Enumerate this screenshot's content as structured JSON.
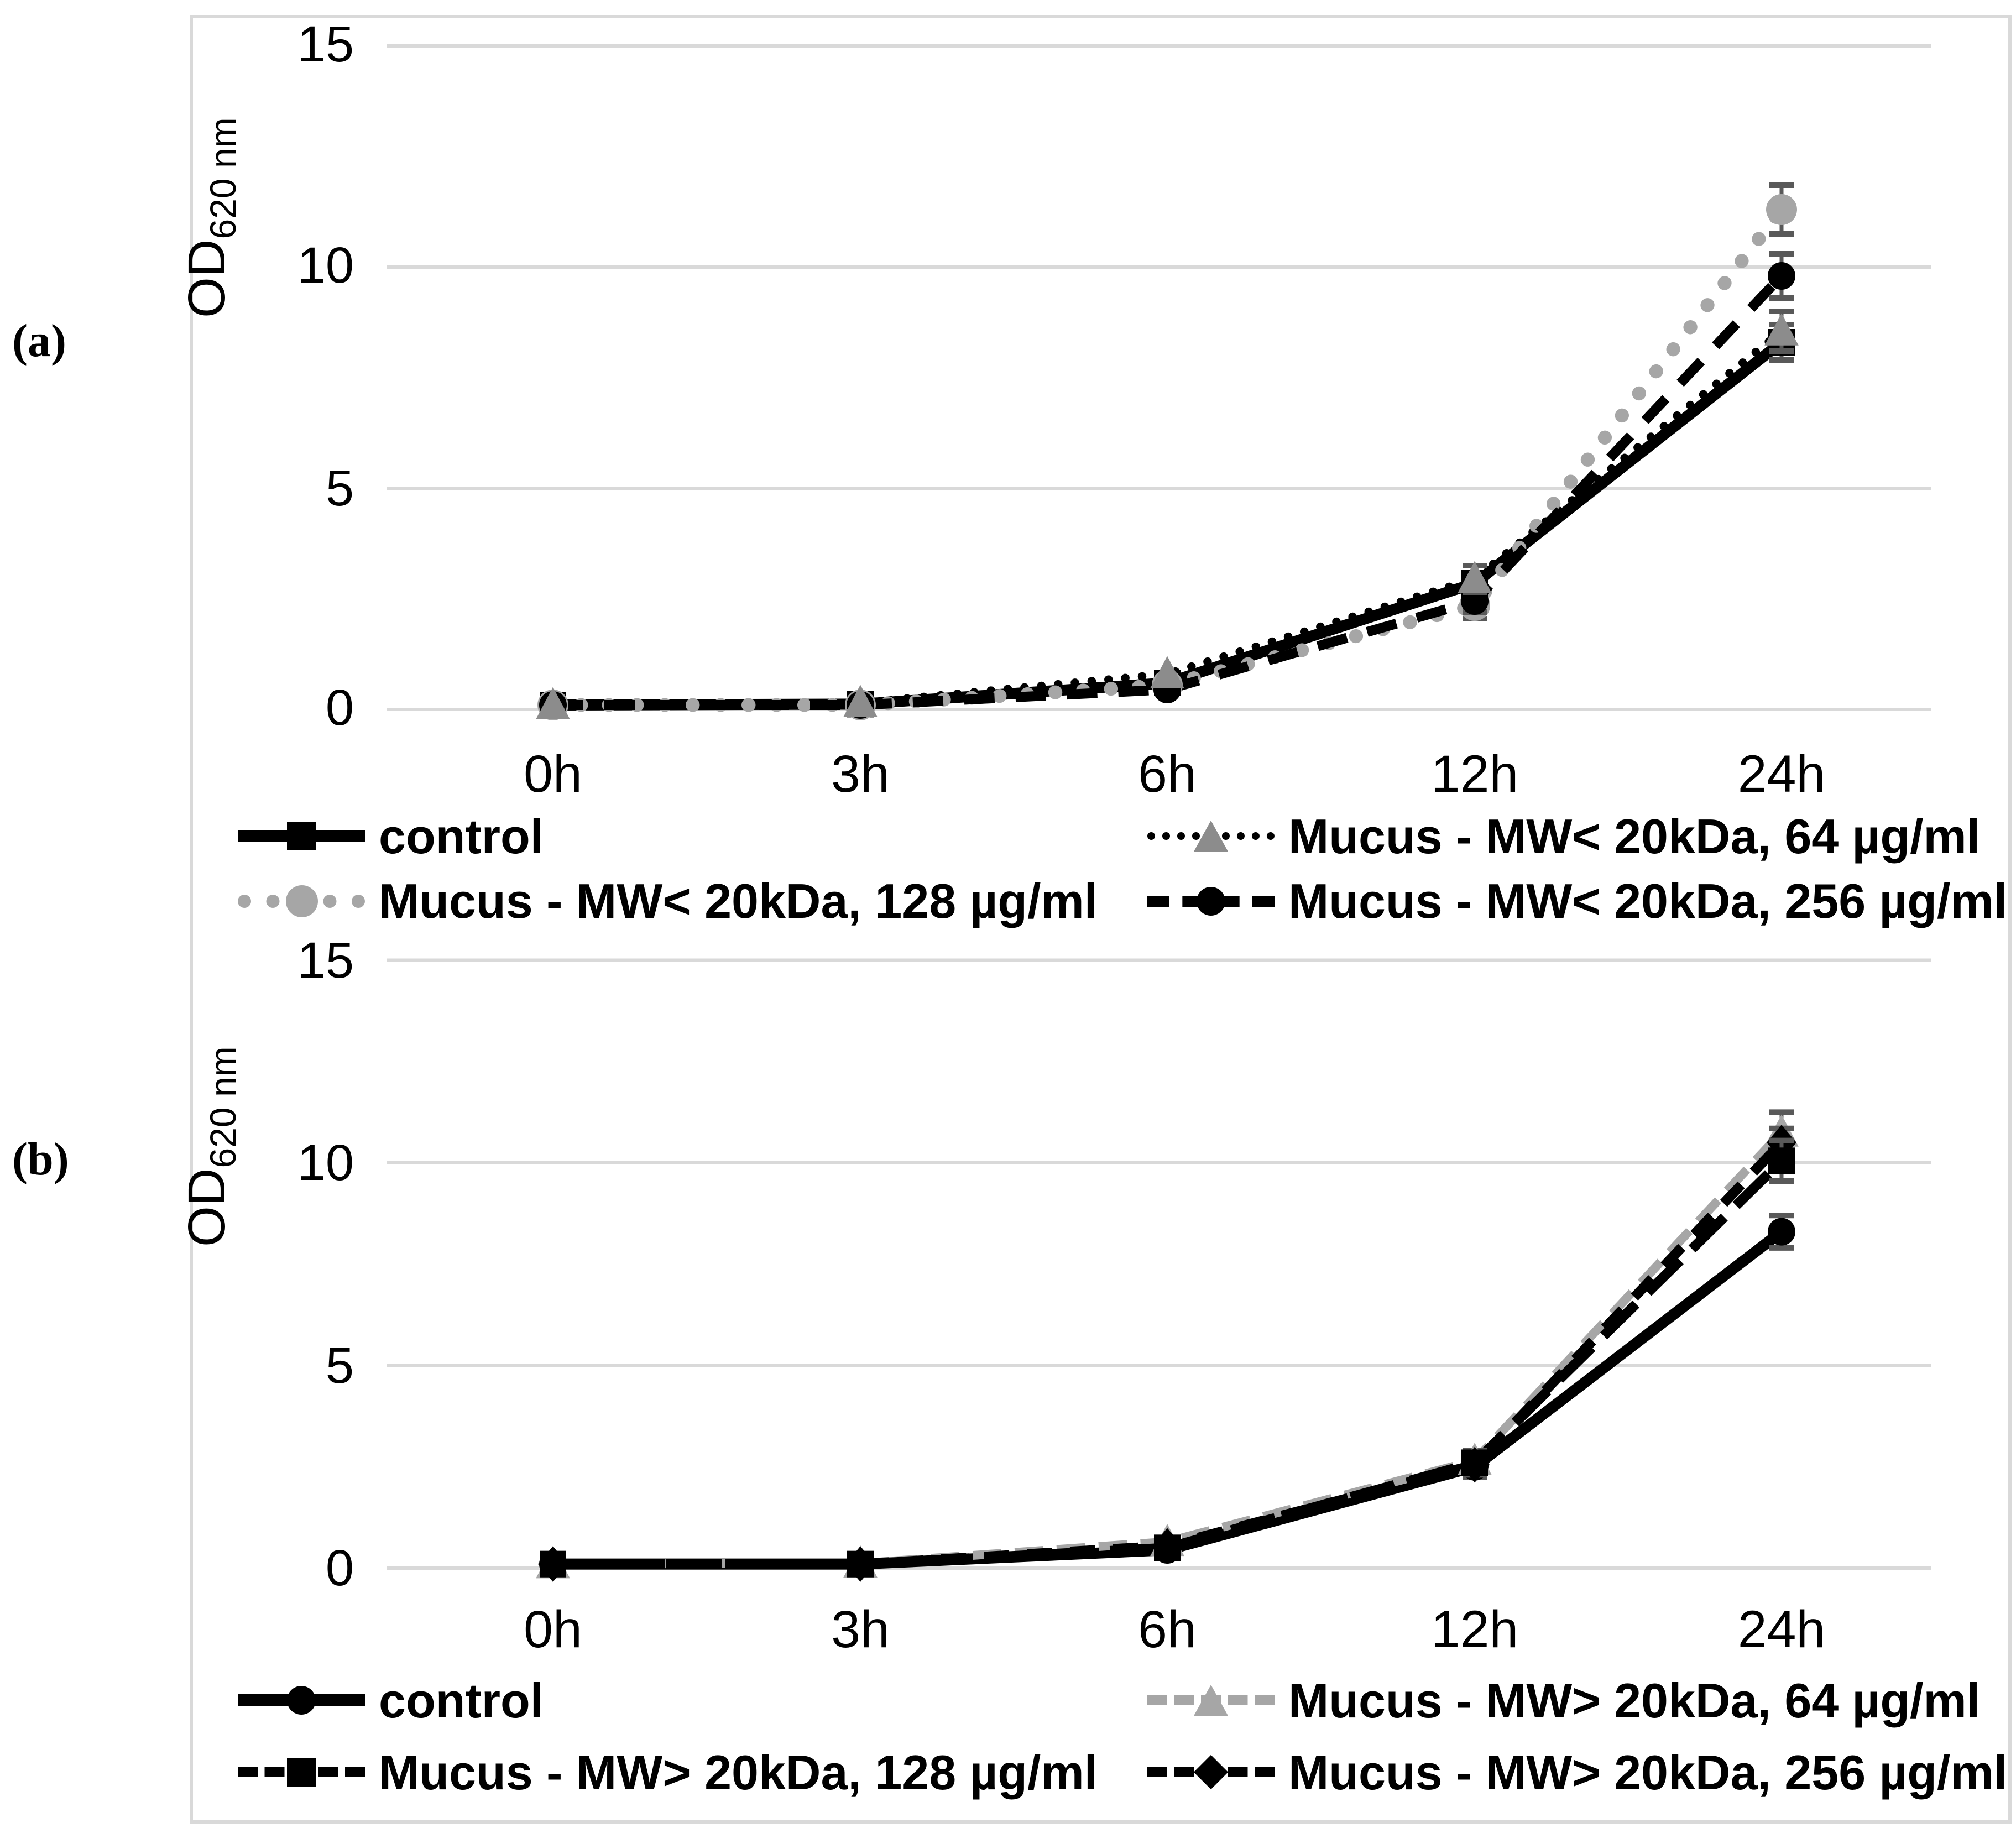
{
  "figure": {
    "panel_a_label": "(a)",
    "panel_b_label": "(b)"
  },
  "chart_data": [
    {
      "type": "line",
      "panel": "a",
      "ylabel_main": "OD",
      "ylabel_sub": "620 nm",
      "categories": [
        "0h",
        "3h",
        "6h",
        "12h",
        "24h"
      ],
      "x_hours": [
        0,
        3,
        6,
        12,
        24
      ],
      "yticks": [
        0,
        5,
        10,
        15
      ],
      "ylim": [
        0,
        15
      ],
      "grid": true,
      "grid_color": "#d9d9d9",
      "error_color": "#595959",
      "legend_position": "below",
      "series": [
        {
          "name": "control",
          "values": [
            0.1,
            0.12,
            0.6,
            2.85,
            8.3
          ],
          "errors": [
            0.05,
            0.05,
            0.15,
            0.25,
            0.4
          ],
          "line": "solid",
          "line_color": "#000000",
          "line_width": 20,
          "dash": null,
          "cap": "butt",
          "marker": "square",
          "marker_color": "#000000",
          "marker_size": 48
        },
        {
          "name": "Mucus - MW< 20kDa, 64 µg/ml",
          "values": [
            0.1,
            0.15,
            0.8,
            2.95,
            8.55
          ],
          "errors": [
            0.05,
            0.05,
            0.15,
            0.3,
            0.45
          ],
          "line": "dotted",
          "line_color": "#000000",
          "line_width": 15,
          "dash": "0.5 30",
          "cap": "round",
          "marker": "triangle",
          "marker_color": "#8c8c8c",
          "marker_size": 56
        },
        {
          "name": "Mucus - MW< 20kDa, 128 µg/ml",
          "values": [
            0.1,
            0.1,
            0.55,
            2.35,
            11.3
          ],
          "errors": [
            0.05,
            0.05,
            0.15,
            0.3,
            0.55
          ],
          "line": "dotted",
          "line_color": "#a6a6a6",
          "line_width": 25,
          "dash": "0.5 50",
          "cap": "round",
          "marker": "circle",
          "marker_color": "#a6a6a6",
          "marker_size": 56
        },
        {
          "name": "Mucus - MW< 20kDa, 256 µg/ml",
          "values": [
            0.1,
            0.1,
            0.45,
            2.45,
            9.8
          ],
          "errors": [
            0.05,
            0.05,
            0.15,
            0.25,
            0.5
          ],
          "line": "dashed",
          "line_color": "#000000",
          "line_width": 18,
          "dash": "55 38",
          "cap": "butt",
          "marker": "circle",
          "marker_color": "#000000",
          "marker_size": 50
        }
      ]
    },
    {
      "type": "line",
      "panel": "b",
      "ylabel_main": "OD",
      "ylabel_sub": "620 nm",
      "categories": [
        "0h",
        "3h",
        "6h",
        "12h",
        "24h"
      ],
      "x_hours": [
        0,
        3,
        6,
        12,
        24
      ],
      "yticks": [
        0,
        5,
        10,
        15
      ],
      "ylim": [
        0,
        15
      ],
      "grid": true,
      "grid_color": "#d9d9d9",
      "error_color": "#595959",
      "legend_position": "below",
      "series": [
        {
          "name": "control",
          "values": [
            0.1,
            0.1,
            0.45,
            2.5,
            8.3
          ],
          "errors": [
            0.05,
            0.05,
            0.12,
            0.25,
            0.4
          ],
          "line": "solid",
          "line_color": "#000000",
          "line_width": 20,
          "dash": null,
          "cap": "butt",
          "marker": "circle",
          "marker_color": "#000000",
          "marker_size": 50
        },
        {
          "name": "Mucus - MW> 20kDa, 64 µg/ml",
          "values": [
            0.1,
            0.12,
            0.65,
            2.65,
            10.75
          ],
          "errors": [
            0.05,
            0.05,
            0.15,
            0.25,
            0.5
          ],
          "line": "dashed",
          "line_color": "#a6a6a6",
          "line_width": 16,
          "dash": "52 24",
          "cap": "butt",
          "marker": "triangle",
          "marker_color": "#a6a6a6",
          "marker_size": 56
        },
        {
          "name": "Mucus - MW> 20kDa, 128 µg/ml",
          "values": [
            0.1,
            0.1,
            0.5,
            2.6,
            10.05
          ],
          "errors": [
            0.05,
            0.05,
            0.12,
            0.25,
            0.5
          ],
          "line": "dashed",
          "line_color": "#000000",
          "line_width": 18,
          "dash": "82 30",
          "cap": "butt",
          "marker": "square",
          "marker_color": "#000000",
          "marker_size": 48
        },
        {
          "name": "Mucus - MW> 20kDa, 256 µg/ml",
          "values": [
            0.1,
            0.1,
            0.55,
            2.55,
            10.5
          ],
          "errors": [
            0.05,
            0.05,
            0.12,
            0.25,
            0.35
          ],
          "line": "dashed",
          "line_color": "#000000",
          "line_width": 18,
          "dash": "46 32",
          "cap": "butt",
          "marker": "diamond",
          "marker_color": "#000000",
          "marker_size": 52
        }
      ]
    }
  ]
}
